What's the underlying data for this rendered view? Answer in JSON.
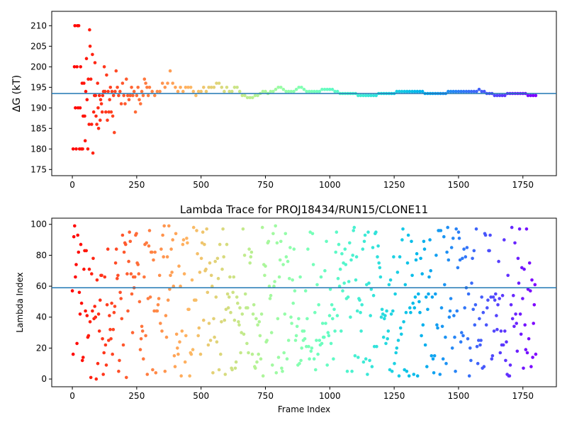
{
  "chart_data": [
    {
      "type": "scatter",
      "title": "",
      "xlabel": "",
      "ylabel": "ΔG (kT)",
      "xlim": [
        -80,
        1880
      ],
      "ylim": [
        173.5,
        213.5
      ],
      "xticks": [
        0,
        250,
        500,
        750,
        1000,
        1250,
        1500,
        1750
      ],
      "yticks": [
        175,
        180,
        185,
        190,
        195,
        200,
        205,
        210
      ],
      "hline": 193.5,
      "colormap": "rainbow (red → violet with frame index)",
      "grid": false,
      "n_frames": 1800,
      "series": [
        {
          "points": [
            [
              3,
              180
            ],
            [
              8,
              200
            ],
            [
              10,
              210
            ],
            [
              12,
              190
            ],
            [
              15,
              180
            ],
            [
              18,
              200
            ],
            [
              20,
              210
            ],
            [
              22,
              190
            ],
            [
              25,
              210
            ],
            [
              28,
              180
            ],
            [
              30,
              190
            ],
            [
              32,
              200
            ],
            [
              35,
              180
            ],
            [
              38,
              196
            ],
            [
              40,
              180
            ],
            [
              42,
              188
            ],
            [
              45,
              196
            ],
            [
              48,
              188
            ],
            [
              50,
              182
            ],
            [
              52,
              194
            ],
            [
              55,
              202
            ],
            [
              57,
              192
            ],
            [
              60,
              180
            ],
            [
              62,
              197
            ],
            [
              65,
              186
            ],
            [
              67,
              209
            ],
            [
              69,
              205
            ],
            [
              72,
              197
            ],
            [
              75,
              186
            ],
            [
              78,
              203
            ],
            [
              80,
              179
            ],
            [
              83,
              189
            ],
            [
              86,
              193
            ],
            [
              88,
              201
            ],
            [
              90,
              193
            ],
            [
              92,
              188
            ],
            [
              95,
              186
            ],
            [
              98,
              196
            ],
            [
              100,
              190
            ],
            [
              102,
              185
            ],
            [
              105,
              193
            ],
            [
              108,
              187
            ],
            [
              110,
              192
            ],
            [
              113,
              191
            ],
            [
              116,
              189
            ],
            [
              118,
              193
            ],
            [
              121,
              194
            ],
            [
              124,
              200
            ],
            [
              127,
              194
            ],
            [
              130,
              189
            ],
            [
              133,
              198
            ],
            [
              136,
              187
            ],
            [
              139,
              194
            ],
            [
              142,
              189
            ],
            [
              145,
              192
            ],
            [
              148,
              195
            ],
            [
              151,
              189
            ],
            [
              154,
              194
            ],
            [
              157,
              188
            ],
            [
              160,
              193
            ],
            [
              163,
              184
            ],
            [
              166,
              194
            ],
            [
              170,
              199
            ],
            [
              175,
              195
            ],
            [
              180,
              193
            ],
            [
              185,
              194
            ],
            [
              190,
              191
            ],
            [
              195,
              196
            ],
            [
              200,
              193
            ],
            [
              205,
              191
            ],
            [
              210,
              197
            ],
            [
              215,
              193
            ],
            [
              220,
              192
            ],
            [
              225,
              193
            ],
            [
              230,
              195
            ],
            [
              235,
              193
            ],
            [
              240,
              194
            ],
            [
              245,
              189
            ],
            [
              250,
              193
            ],
            [
              255,
              195
            ],
            [
              260,
              192
            ],
            [
              265,
              191
            ],
            [
              270,
              194
            ],
            [
              275,
              193
            ],
            [
              280,
              197
            ],
            [
              285,
              196
            ],
            [
              290,
              195
            ],
            [
              295,
              193
            ],
            [
              300,
              195
            ],
            [
              310,
              194
            ],
            [
              320,
              193
            ],
            [
              330,
              194
            ],
            [
              340,
              194
            ],
            [
              350,
              196
            ],
            [
              360,
              195
            ],
            [
              370,
              196
            ],
            [
              380,
              199
            ],
            [
              390,
              196
            ],
            [
              400,
              195
            ],
            [
              410,
              194
            ],
            [
              420,
              195
            ],
            [
              430,
              194
            ],
            [
              440,
              195
            ],
            [
              450,
              195
            ],
            [
              460,
              195
            ],
            [
              470,
              194
            ],
            [
              480,
              193
            ],
            [
              490,
              194
            ],
            [
              500,
              194
            ],
            [
              510,
              195
            ],
            [
              520,
              194
            ],
            [
              530,
              195
            ],
            [
              540,
              195
            ],
            [
              550,
              195
            ],
            [
              560,
              196
            ],
            [
              570,
              196
            ],
            [
              580,
              195
            ],
            [
              590,
              194
            ],
            [
              600,
              195
            ],
            [
              610,
              194
            ],
            [
              620,
              194
            ],
            [
              630,
              195
            ],
            [
              640,
              195
            ],
            [
              650,
              194
            ],
            [
              660,
              193
            ],
            [
              670,
              193
            ],
            [
              680,
              192.5
            ],
            [
              690,
              192.5
            ],
            [
              700,
              192.5
            ],
            [
              710,
              193
            ],
            [
              720,
              193
            ],
            [
              730,
              193.5
            ],
            [
              740,
              194
            ],
            [
              750,
              194
            ],
            [
              760,
              193.5
            ],
            [
              770,
              194
            ],
            [
              780,
              194
            ],
            [
              790,
              194.5
            ],
            [
              800,
              195
            ],
            [
              810,
              195
            ],
            [
              820,
              194.5
            ],
            [
              830,
              194
            ],
            [
              840,
              194
            ],
            [
              850,
              194
            ],
            [
              860,
              194
            ],
            [
              870,
              194.5
            ],
            [
              880,
              195
            ],
            [
              890,
              195
            ],
            [
              900,
              194.5
            ],
            [
              910,
              194
            ],
            [
              920,
              194
            ],
            [
              930,
              194
            ],
            [
              940,
              194
            ],
            [
              950,
              194
            ],
            [
              960,
              194
            ],
            [
              970,
              194.5
            ],
            [
              980,
              194.5
            ],
            [
              990,
              194.5
            ],
            [
              1000,
              194.5
            ],
            [
              1010,
              194.5
            ],
            [
              1020,
              194
            ],
            [
              1030,
              194
            ],
            [
              1040,
              193.5
            ],
            [
              1050,
              193.5
            ],
            [
              1060,
              193.5
            ],
            [
              1070,
              193.5
            ],
            [
              1080,
              193.5
            ],
            [
              1090,
              193.5
            ],
            [
              1100,
              193.5
            ],
            [
              1110,
              193
            ],
            [
              1120,
              193
            ],
            [
              1130,
              193
            ],
            [
              1140,
              193
            ],
            [
              1150,
              193
            ],
            [
              1160,
              193
            ],
            [
              1170,
              193
            ],
            [
              1180,
              193
            ],
            [
              1190,
              193.5
            ],
            [
              1200,
              193.5
            ],
            [
              1210,
              193.5
            ],
            [
              1220,
              193.5
            ],
            [
              1230,
              193.5
            ],
            [
              1240,
              193.5
            ],
            [
              1250,
              193.5
            ],
            [
              1260,
              194
            ],
            [
              1270,
              194
            ],
            [
              1280,
              194
            ],
            [
              1290,
              194
            ],
            [
              1300,
              194
            ],
            [
              1310,
              194
            ],
            [
              1320,
              194
            ],
            [
              1330,
              194
            ],
            [
              1340,
              194
            ],
            [
              1350,
              194
            ],
            [
              1360,
              194
            ],
            [
              1370,
              193.5
            ],
            [
              1380,
              193.5
            ],
            [
              1390,
              193.5
            ],
            [
              1400,
              193.5
            ],
            [
              1410,
              193.5
            ],
            [
              1420,
              193.5
            ],
            [
              1430,
              193.5
            ],
            [
              1440,
              193.5
            ],
            [
              1450,
              193.5
            ],
            [
              1460,
              194
            ],
            [
              1470,
              194
            ],
            [
              1480,
              194
            ],
            [
              1490,
              194
            ],
            [
              1500,
              194
            ],
            [
              1510,
              194
            ],
            [
              1520,
              194
            ],
            [
              1530,
              194
            ],
            [
              1540,
              194
            ],
            [
              1550,
              194
            ],
            [
              1560,
              194
            ],
            [
              1570,
              194
            ],
            [
              1580,
              194.5
            ],
            [
              1590,
              194
            ],
            [
              1600,
              194
            ],
            [
              1610,
              193.5
            ],
            [
              1620,
              193.5
            ],
            [
              1630,
              193.5
            ],
            [
              1640,
              193
            ],
            [
              1650,
              193
            ],
            [
              1660,
              193
            ],
            [
              1670,
              193
            ],
            [
              1680,
              193
            ],
            [
              1690,
              193.5
            ],
            [
              1700,
              193.5
            ],
            [
              1710,
              193.5
            ],
            [
              1720,
              193.5
            ],
            [
              1730,
              193.5
            ],
            [
              1740,
              193.5
            ],
            [
              1750,
              193.5
            ],
            [
              1760,
              193.5
            ],
            [
              1770,
              193
            ],
            [
              1780,
              193
            ],
            [
              1790,
              193
            ],
            [
              1800,
              193
            ]
          ]
        }
      ]
    },
    {
      "type": "scatter",
      "title": "Lambda Trace for PROJ18434/RUN15/CLONE11",
      "xlabel": "Frame Index",
      "ylabel": "Lambda Index",
      "xlim": [
        -80,
        1880
      ],
      "ylim": [
        -5,
        104
      ],
      "xticks": [
        0,
        250,
        500,
        750,
        1000,
        1250,
        1500,
        1750
      ],
      "yticks": [
        0,
        20,
        40,
        60,
        80,
        100
      ],
      "hline": 59,
      "colormap": "rainbow (red → violet with frame index)",
      "grid": false,
      "n_frames": 1800,
      "series": [
        {
          "lambda_range": [
            0,
            99
          ],
          "frame_step": 3,
          "seed": 18434
        }
      ]
    }
  ]
}
